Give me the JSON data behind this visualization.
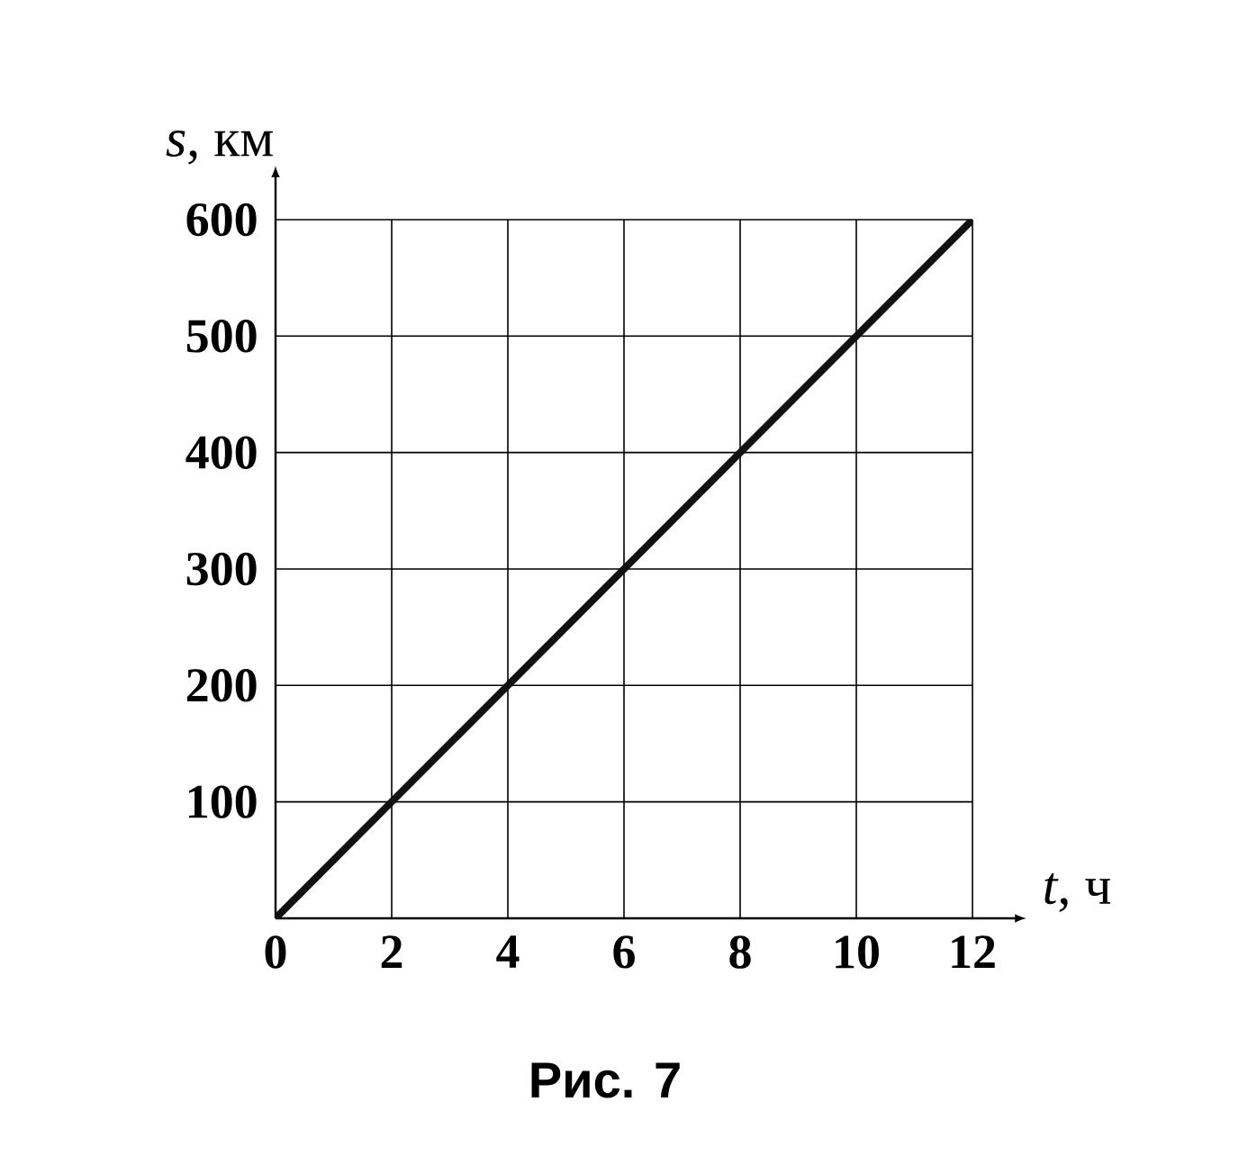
{
  "chart_data": {
    "type": "line",
    "x": [
      0,
      12
    ],
    "values": [
      0,
      600
    ],
    "color": "#111111",
    "xlabel": "*t*, ч",
    "ylabel": "*s*, км",
    "xlim": [
      0,
      12
    ],
    "ylim": [
      0,
      600
    ],
    "xticks": [
      0,
      2,
      4,
      6,
      8,
      10,
      12
    ],
    "yticks": [
      {
        "value": 0,
        "label": null
      },
      100,
      200,
      300,
      400,
      500,
      600
    ],
    "grid": true,
    "marker": "none",
    "line_style": "solid",
    "annotations": [
      "Рис. 7"
    ]
  }
}
